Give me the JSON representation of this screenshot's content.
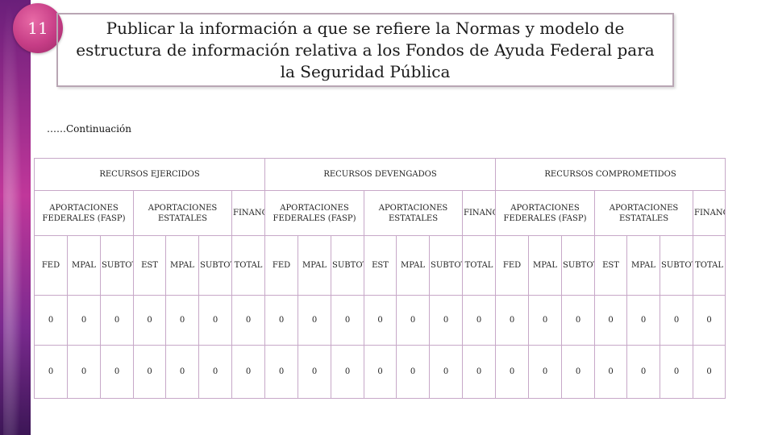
{
  "slide_number": "11",
  "title": "Publicar la información a que se refiere la Normas y modelo de estructura de información relativa a los Fondos de Ayuda Federal para la Seguridad Pública",
  "continuation": "……Continuación",
  "table": {
    "groups": [
      "RECURSOS EJERCIDOS",
      "RECURSOS DEVENGADOS",
      "RECURSOS COMPROMETIDOS"
    ],
    "subgroups": [
      "APORTACIONES FEDERALES (FASP)",
      "APORTACIONES ESTATALES",
      "FINANCIAMIENTO"
    ],
    "columns": [
      "FED",
      "MPAL",
      "SUBTOTAL",
      "EST",
      "MPAL",
      "SUBTOTAL",
      "TOTAL"
    ],
    "rows": [
      [
        "0",
        "0",
        "0",
        "0",
        "0",
        "0",
        "0",
        "0",
        "0",
        "0",
        "0",
        "0",
        "0",
        "0",
        "0",
        "0",
        "0",
        "0",
        "0",
        "0",
        "0"
      ],
      [
        "0",
        "0",
        "0",
        "0",
        "0",
        "0",
        "0",
        "0",
        "0",
        "0",
        "0",
        "0",
        "0",
        "0",
        "0",
        "0",
        "0",
        "0",
        "0",
        "0",
        "0"
      ]
    ]
  }
}
